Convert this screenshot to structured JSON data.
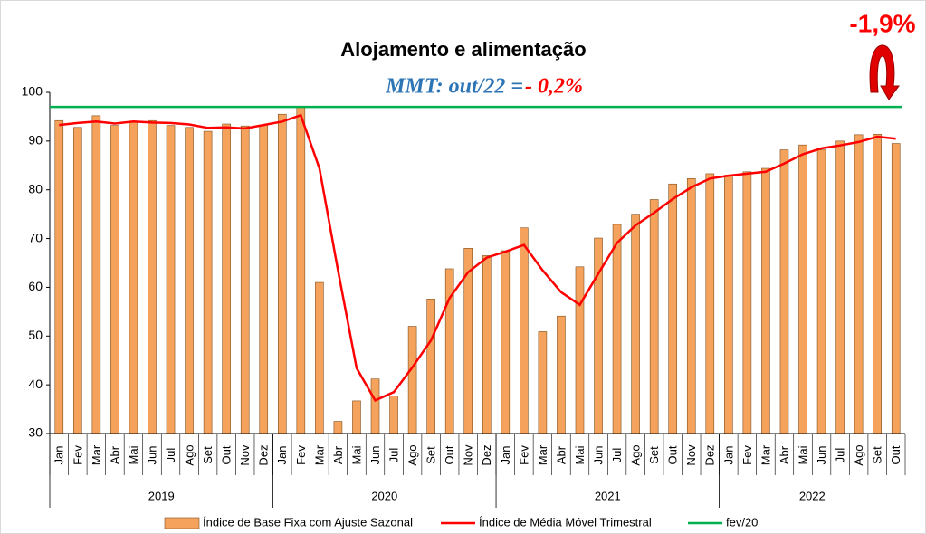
{
  "chart_data": {
    "type": "bar",
    "title": "Alojamento e alimentação",
    "annotations": [
      "MMT: out/22 = ",
      "- 0,2%",
      "-1,9%"
    ],
    "categories": [
      "Jan",
      "Fev",
      "Mar",
      "Abr",
      "Mai",
      "Jun",
      "Jul",
      "Ago",
      "Set",
      "Out",
      "Nov",
      "Dez",
      "Jan",
      "Fev",
      "Mar",
      "Abr",
      "Mai",
      "Jun",
      "Jul",
      "Ago",
      "Set",
      "Out",
      "Nov",
      "Dez",
      "Jan",
      "Fev",
      "Mar",
      "Abr",
      "Mai",
      "Jun",
      "Jul",
      "Ago",
      "Set",
      "Out",
      "Nov",
      "Dez",
      "Jan",
      "Fev",
      "Mar",
      "Abr",
      "Mai",
      "Jun",
      "Jul",
      "Ago",
      "Set",
      "Out"
    ],
    "groups": [
      {
        "label": "2019",
        "count": 12
      },
      {
        "label": "2020",
        "count": 12
      },
      {
        "label": "2021",
        "count": 12
      },
      {
        "label": "2022",
        "count": 10
      }
    ],
    "series": [
      {
        "name": "Índice de Base Fixa com Ajuste Sazonal",
        "type": "bar",
        "color": "#f5a35c",
        "values": [
          94.2,
          92.8,
          95.2,
          93.2,
          94.0,
          94.2,
          93.2,
          92.8,
          92.0,
          93.5,
          93.1,
          93.3,
          95.5,
          97.0,
          61.0,
          32.5,
          36.7,
          41.2,
          37.7,
          52.0,
          57.6,
          63.8,
          68.0,
          66.5,
          67.5,
          72.2,
          50.9,
          54.1,
          64.2,
          70.1,
          72.9,
          75.0,
          78.0,
          81.2,
          82.3,
          83.3,
          83.0,
          83.7,
          84.4,
          88.2,
          89.2,
          88.2,
          90.0,
          91.3,
          91.4,
          89.5
        ]
      },
      {
        "name": "Índice de Média Móvel Trimestral",
        "type": "line",
        "color": "#ff0000",
        "values": [
          93.3,
          93.7,
          94.0,
          93.6,
          94.0,
          93.8,
          93.7,
          93.4,
          92.7,
          92.8,
          92.6,
          93.3,
          94.0,
          95.3,
          84.4,
          63.5,
          43.4,
          36.8,
          38.5,
          43.6,
          49.1,
          57.8,
          63.1,
          66.1,
          67.3,
          68.7,
          63.5,
          59.0,
          56.4,
          62.8,
          69.1,
          72.7,
          75.3,
          78.1,
          80.5,
          82.3,
          82.9,
          83.3,
          83.7,
          85.4,
          87.3,
          88.5,
          89.1,
          89.8,
          90.9,
          90.5
        ]
      }
    ],
    "reference_line": {
      "name": "fev/20",
      "value": 97,
      "color": "#00b050"
    },
    "ylim": [
      30,
      100
    ],
    "yticks": [
      30,
      40,
      50,
      60,
      70,
      80,
      90,
      100
    ],
    "grid": false
  }
}
